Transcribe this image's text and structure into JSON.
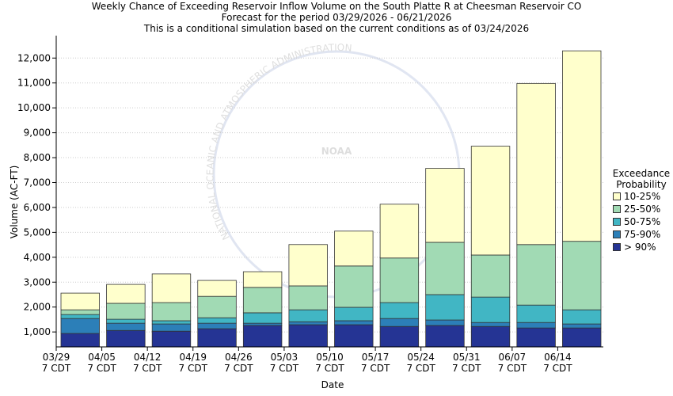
{
  "chart_data": {
    "type": "stacked-bar",
    "title": "Weekly Chance of Exceeding Reservoir Inflow Volume on the South Platte R at Cheesman Reservoir CO",
    "subtitle": "Forecast for the period 03/29/2026 - 06/21/2026",
    "note": "This is a conditional simulation based on the current conditions as of 03/24/2026",
    "watermark": "NOAA",
    "watermark_ring": "NATIONAL OCEANIC AND ATMOSPHERIC ADMINISTRATION",
    "x_label": "Date",
    "y_label": "Volume (AC-FT)",
    "legend_title": "Exceedance Probability",
    "categories": [
      "03/29\n7 CDT",
      "04/05\n7 CDT",
      "04/12\n7 CDT",
      "04/19\n7 CDT",
      "04/26\n7 CDT",
      "05/03\n7 CDT",
      "05/10\n7 CDT",
      "05/17\n7 CDT",
      "05/24\n7 CDT",
      "05/31\n7 CDT",
      "06/07\n7 CDT",
      "06/14\n7 CDT"
    ],
    "series": [
      {
        "name": "> 90%",
        "color": "#253494",
        "values": [
          940,
          1060,
          1030,
          1130,
          1260,
          1290,
          1290,
          1220,
          1260,
          1220,
          1160,
          1160
        ]
      },
      {
        "name": "75-90%",
        "color": "#2c7fb8",
        "values": [
          600,
          290,
          290,
          220,
          90,
          120,
          160,
          320,
          220,
          160,
          220,
          160
        ]
      },
      {
        "name": "50-75%",
        "color": "#41b6c4",
        "values": [
          160,
          160,
          130,
          220,
          420,
          480,
          540,
          640,
          1020,
          1020,
          700,
          570
        ]
      },
      {
        "name": "25-50%",
        "color": "#a1dab4",
        "values": [
          190,
          640,
          730,
          860,
          1020,
          960,
          1660,
          1790,
          2100,
          1690,
          2430,
          2750
        ]
      },
      {
        "name": "10-25%",
        "color": "#ffffcc",
        "values": [
          670,
          760,
          1150,
          640,
          630,
          1660,
          1400,
          2160,
          2970,
          4370,
          6470,
          7650
        ]
      }
    ],
    "ylim": [
      400,
      12900
    ],
    "yticks": [
      {
        "value": 1000,
        "label": "1,000"
      },
      {
        "value": 2000,
        "label": "2,000"
      },
      {
        "value": 3000,
        "label": "3,000"
      },
      {
        "value": 4000,
        "label": "4,000"
      },
      {
        "value": 5000,
        "label": "5,000"
      },
      {
        "value": 6000,
        "label": "6,000"
      },
      {
        "value": 7000,
        "label": "7,000"
      },
      {
        "value": 8000,
        "label": "8,000"
      },
      {
        "value": 9000,
        "label": "9,000"
      },
      {
        "value": 10000,
        "label": "10,000"
      },
      {
        "value": 11000,
        "label": "11,000"
      },
      {
        "value": 12000,
        "label": "12,000"
      }
    ],
    "grid": true
  }
}
